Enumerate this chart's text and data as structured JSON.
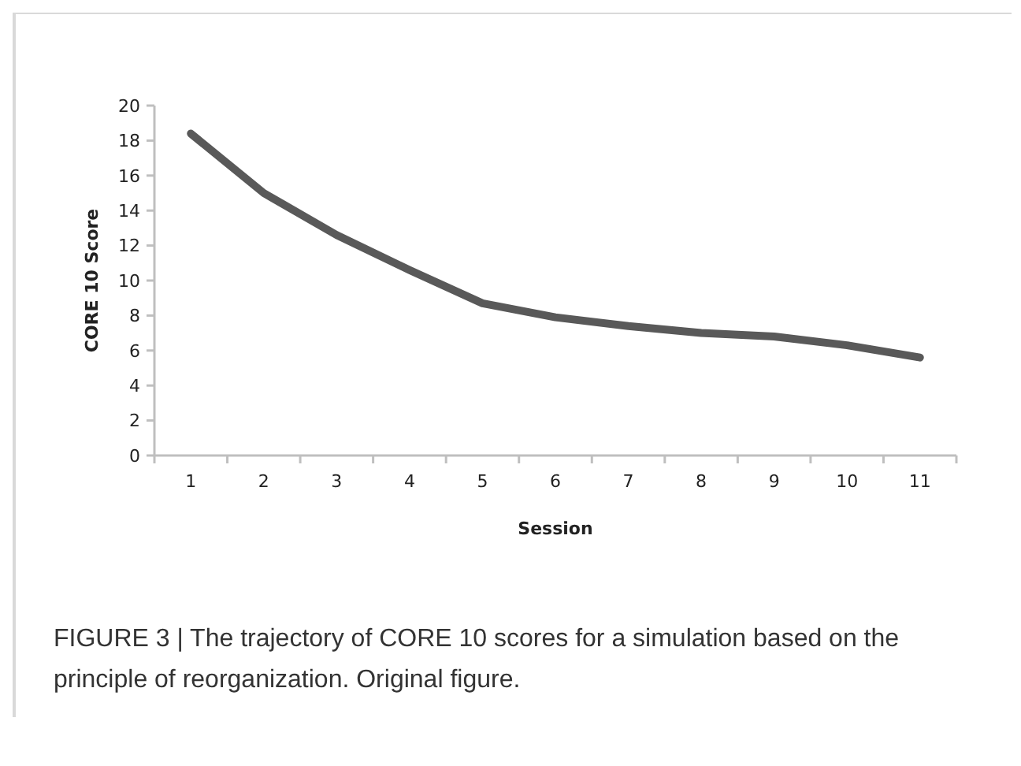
{
  "chart_data": {
    "type": "line",
    "xlabel": "Session",
    "ylabel": "CORE 10 Score",
    "categories": [
      "1",
      "2",
      "3",
      "4",
      "5",
      "6",
      "7",
      "8",
      "9",
      "10",
      "11"
    ],
    "series": [
      {
        "color": "#595959",
        "values": [
          18.4,
          15.0,
          12.6,
          10.6,
          8.7,
          7.9,
          7.4,
          7.0,
          6.8,
          6.3,
          5.6
        ]
      }
    ],
    "ylim": [
      0,
      20
    ],
    "yticks": [
      0,
      2,
      4,
      6,
      8,
      10,
      12,
      14,
      16,
      18,
      20
    ],
    "grid": false,
    "marker": "none",
    "line_style": "solid",
    "annotations": [
      "FIGURE 3 | The trajectory of CORE 10 scores for a simulation based on the principle of reorganization. Original figure."
    ]
  }
}
